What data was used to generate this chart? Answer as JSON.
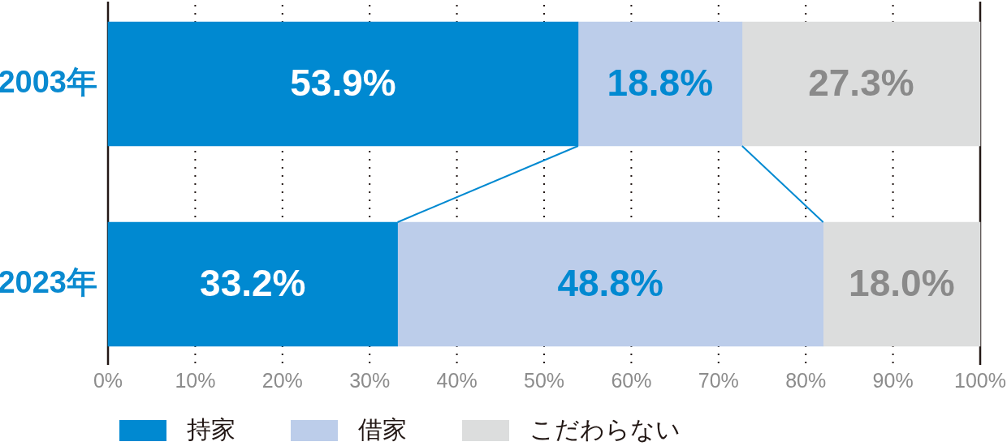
{
  "chart_data": {
    "type": "bar",
    "orientation": "horizontal",
    "stacked": true,
    "categories": [
      "2003年",
      "2023年"
    ],
    "series": [
      {
        "name": "持家",
        "color": "#0089d1",
        "values": [
          53.9,
          33.2
        ],
        "value_labels": [
          "53.9%",
          "33.2%"
        ]
      },
      {
        "name": "借家",
        "color": "#bccdea",
        "values": [
          18.8,
          48.8
        ],
        "value_labels": [
          "18.8%",
          "48.8%"
        ]
      },
      {
        "name": "こだわらない",
        "color": "#dcdddd",
        "values": [
          27.3,
          18.0
        ],
        "value_labels": [
          "27.3%",
          "18.0%"
        ]
      }
    ],
    "xlim": [
      0,
      100
    ],
    "xticks": [
      {
        "value": 0,
        "label": "0%"
      },
      {
        "value": 10,
        "label": "10%"
      },
      {
        "value": 20,
        "label": "20%"
      },
      {
        "value": 30,
        "label": "30%"
      },
      {
        "value": 40,
        "label": "40%"
      },
      {
        "value": 50,
        "label": "50%"
      },
      {
        "value": 60,
        "label": "60%"
      },
      {
        "value": 70,
        "label": "70%"
      },
      {
        "value": 80,
        "label": "80%"
      },
      {
        "value": 90,
        "label": "90%"
      },
      {
        "value": 100,
        "label": "100%"
      }
    ],
    "grid": "x",
    "legend": "bottom left"
  }
}
